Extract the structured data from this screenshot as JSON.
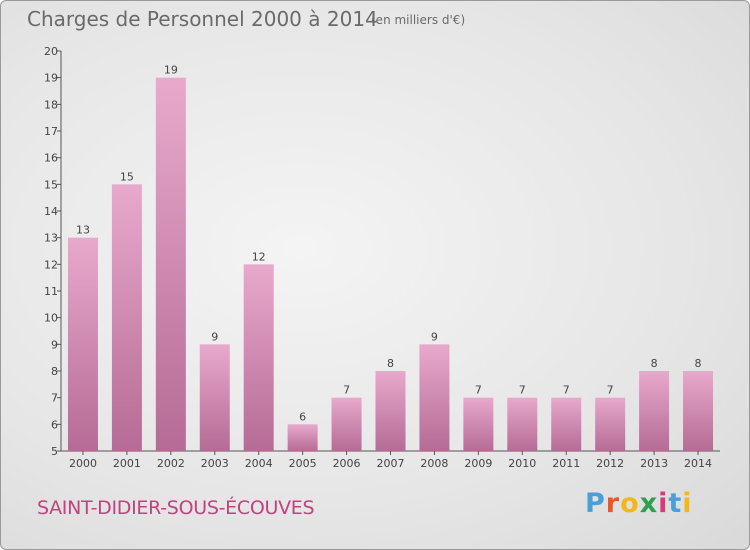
{
  "header": {
    "title": "Charges de Personnel 2000 à 2014",
    "subtitle": "(en milliers d'€)"
  },
  "footer": {
    "commune": "SAINT-DIDIER-SOUS-ÉCOUVES",
    "logo_text": "Proxiti"
  },
  "colors": {
    "bar_top": "#e8a9cc",
    "bar_bottom": "#b56b95",
    "commune_text": "#c2417e",
    "logo": [
      "#4a9fd8",
      "#e8572a",
      "#f2b818",
      "#2f9e4f",
      "#d83a7a",
      "#4a9fd8",
      "#f2b818"
    ]
  },
  "chart_data": {
    "type": "bar",
    "title": "Charges de Personnel 2000 à 2014",
    "subtitle": "(en milliers d'€)",
    "categories": [
      "2000",
      "2001",
      "2002",
      "2003",
      "2004",
      "2005",
      "2006",
      "2007",
      "2008",
      "2009",
      "2010",
      "2011",
      "2012",
      "2013",
      "2014"
    ],
    "values": [
      13,
      15,
      19,
      9,
      12,
      6,
      7,
      8,
      9,
      7,
      7,
      7,
      7,
      8,
      8
    ],
    "ylim": [
      5,
      20
    ],
    "yticks": [
      5,
      6,
      7,
      8,
      9,
      10,
      11,
      12,
      13,
      14,
      15,
      16,
      17,
      18,
      19,
      20
    ],
    "grid": false,
    "legend": "none"
  }
}
